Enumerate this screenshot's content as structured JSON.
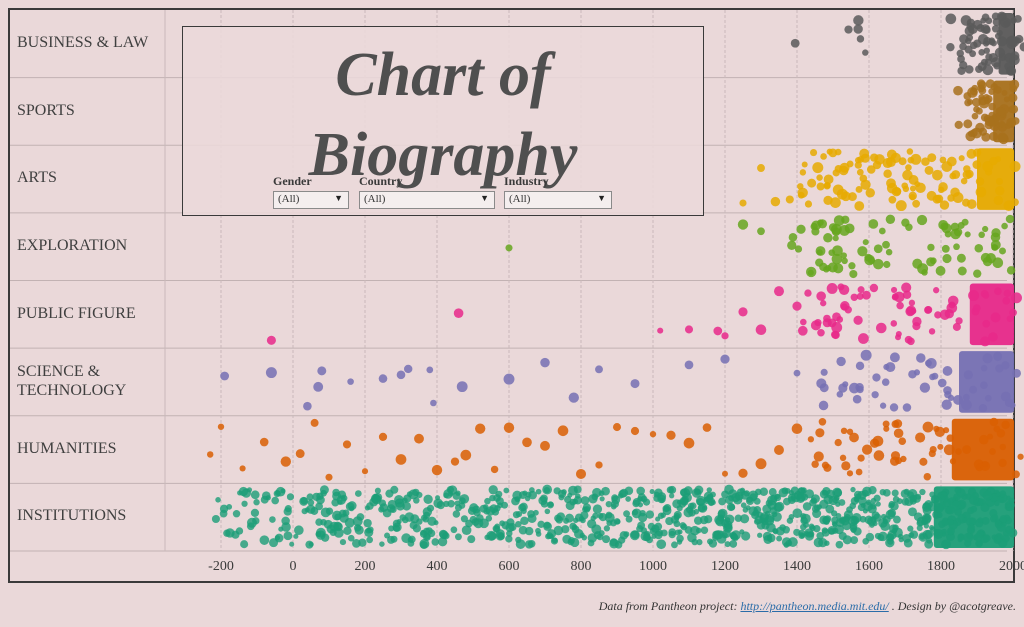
{
  "chart_data": {
    "type": "scatter",
    "title": "Chart of Biography",
    "xlabel": "",
    "ylabel": "",
    "xlim": [
      -320,
      2030
    ],
    "x_ticks": [
      "-200",
      "0",
      "200",
      "400",
      "600",
      "800",
      "1000",
      "1200",
      "1400",
      "1600",
      "1800",
      "2000"
    ],
    "categories": [
      {
        "name": "BUSINESS & LAW",
        "color": "#5a5a5a"
      },
      {
        "name": "SPORTS",
        "color": "#a8711c"
      },
      {
        "name": "ARTS",
        "color": "#e6aa00"
      },
      {
        "name": "EXPLORATION",
        "color": "#66a61e"
      },
      {
        "name": "PUBLIC FIGURE",
        "color": "#e7298a"
      },
      {
        "name": "SCIENCE & TECHNOLOGY",
        "color": "#7570b3"
      },
      {
        "name": "HUMANITIES",
        "color": "#d95f02"
      },
      {
        "name": "INSTITUTIONS",
        "color": "#1b9e77"
      }
    ],
    "series": [
      {
        "category": "BUSINESS & LAW",
        "points": [
          1395,
          1570,
          1850,
          1880,
          1895,
          1905,
          1920,
          1935,
          1950,
          1962,
          1975,
          1985,
          1990,
          1998,
          1912,
          1928
        ]
      },
      {
        "category": "SPORTS",
        "points": [
          1880,
          1890,
          1900,
          1910,
          1920,
          1930,
          1940,
          1950,
          1960,
          1970,
          1980,
          1990,
          2000
        ]
      },
      {
        "category": "ARTS",
        "points": [
          1250,
          1300,
          1340,
          1380,
          1420,
          1450,
          1480,
          1500,
          1520,
          1550,
          1580,
          1600,
          1620,
          1650,
          1680,
          1700,
          1720,
          1750,
          1780,
          1800,
          1820,
          1850,
          1880,
          1900,
          1950,
          1990
        ]
      },
      {
        "category": "EXPLORATION",
        "points": [
          600,
          1250,
          1300,
          1410,
          1440,
          1470,
          1490,
          1500,
          1520,
          1550,
          1580,
          1620,
          1680,
          1750,
          1790,
          1820,
          1850,
          1880,
          1920,
          1950,
          1980
        ]
      },
      {
        "category": "PUBLIC FIGURE",
        "points": [
          -60,
          460,
          1020,
          1100,
          1180,
          1200,
          1250,
          1300,
          1350,
          1400,
          1450,
          1480,
          1500,
          1530,
          1560,
          1600,
          1650,
          1700,
          1720,
          1750,
          1800,
          1850,
          1900,
          1950,
          1990
        ]
      },
      {
        "category": "SCIENCE & TECHNOLOGY",
        "points": [
          -190,
          -60,
          40,
          70,
          80,
          160,
          250,
          300,
          320,
          380,
          390,
          470,
          600,
          700,
          780,
          850,
          950,
          1100,
          1200,
          1400,
          1500,
          1550,
          1600,
          1650,
          1700,
          1750,
          1800,
          1850,
          1900,
          1950,
          1990
        ]
      },
      {
        "category": "HUMANITIES",
        "points": [
          -230,
          -200,
          -140,
          -80,
          -20,
          20,
          60,
          100,
          150,
          200,
          250,
          300,
          350,
          400,
          450,
          480,
          520,
          560,
          600,
          650,
          700,
          750,
          800,
          850,
          900,
          950,
          1000,
          1050,
          1100,
          1150,
          1200,
          1250,
          1300,
          1350,
          1400,
          1450,
          1500,
          1550,
          1600,
          1650,
          1700,
          1750,
          1800,
          1850,
          1900,
          1950,
          1990
        ]
      }
    ],
    "institutions_range": [
      -240,
      2000
    ],
    "grid": true,
    "legend": "none"
  },
  "filters": [
    {
      "label": "Gender",
      "value": "(All)"
    },
    {
      "label": "Country",
      "value": "(All)"
    },
    {
      "label": "Industry",
      "value": "(All)"
    }
  ],
  "title_line1": "Chart of",
  "title_line2": "Biography",
  "footer": {
    "prefix": "Data from Pantheon project: ",
    "link_text": "http://pantheon.media.mit.edu/",
    "suffix": " . Design by @acotgreave."
  },
  "labels": {
    "business": "BUSINESS & LAW",
    "sports": "SPORTS",
    "arts": "ARTS",
    "exploration": "EXPLORATION",
    "public": "PUBLIC FIGURE",
    "science": "SCIENCE &\nTECHNOLOGY",
    "humanities": "HUMANITIES",
    "institutions": "INSTITUTIONS"
  }
}
